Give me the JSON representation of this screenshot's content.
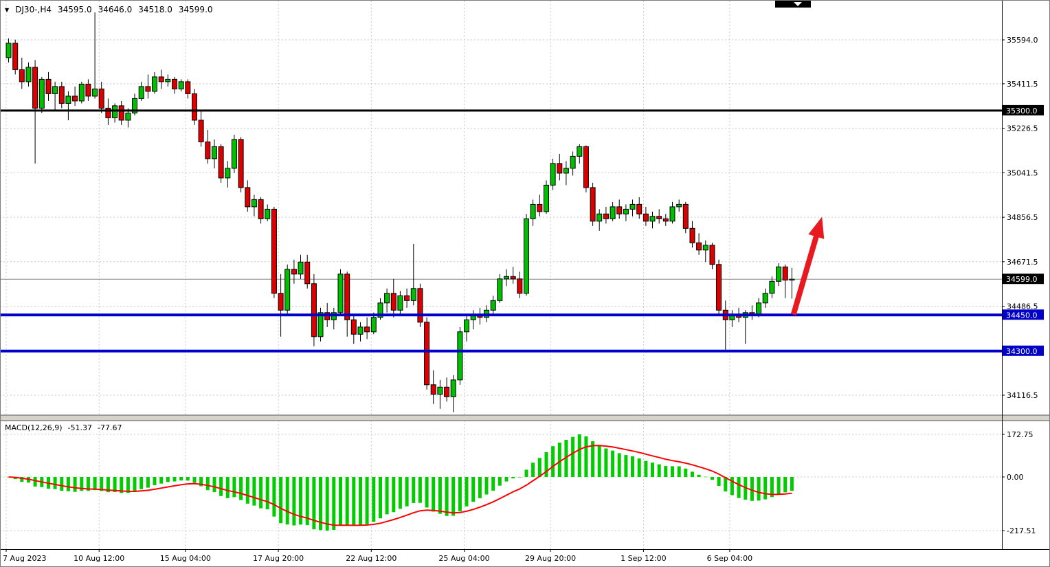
{
  "header": {
    "dropdown_icon": "▼",
    "symbol_period": "DJ30-,H4",
    "open": "34595.0",
    "high": "34646.0",
    "low": "34518.0",
    "close": "34599.0"
  },
  "macd_header": {
    "label": "MACD(12,26,9)",
    "macd_value": "-51.37",
    "signal_value": "-77.67"
  },
  "colors": {
    "bull": "#00BE00",
    "bear": "#DC0000",
    "candle_outline": "#000000",
    "histogram": "#00CC00",
    "signal_line": "#FF0000",
    "level_blue": "#0000C8",
    "level_black": "#000000",
    "current_price_line": "#808080",
    "arrow": "#E8191F",
    "badge_text": "#FFFFFF"
  },
  "chart_data": {
    "type": "candlestick",
    "symbol": "DJ30-",
    "timeframe": "H4",
    "indicator": "MACD(12,26,9)",
    "ylim": [
      34030,
      35760
    ],
    "price_axis": {
      "gridlines": [
        35594.0,
        35411.5,
        35226.5,
        35041.5,
        34856.5,
        34671.5,
        34486.5,
        34301.5,
        34116.5
      ],
      "tick_labels": [
        {
          "text": "35594.0",
          "price": 35594.0
        },
        {
          "text": "35411.5",
          "price": 35411.5
        },
        {
          "text": "35226.5",
          "price": 35226.5
        },
        {
          "text": "35041.5",
          "price": 35041.5
        },
        {
          "text": "34856.5",
          "price": 34856.5
        },
        {
          "text": "34671.5",
          "price": 34671.5
        },
        {
          "text": "34486.5",
          "price": 34486.5
        },
        {
          "text": "34116.5",
          "price": 34116.5
        }
      ],
      "badges": [
        {
          "text": "35300.0",
          "price": 35300.0,
          "bg": "#000000"
        },
        {
          "text": "34599.0",
          "price": 34599.0,
          "bg": "#000000"
        },
        {
          "text": "34450.0",
          "price": 34450.0,
          "bg": "#0000C8"
        },
        {
          "text": "34300.0",
          "price": 34300.0,
          "bg": "#0000C8"
        }
      ]
    },
    "h_lines": [
      {
        "price": 35300.0,
        "color": "#000000",
        "width": 3
      },
      {
        "price": 34450.0,
        "color": "#0000C8",
        "width": 4
      },
      {
        "price": 34300.0,
        "color": "#0000C8",
        "width": 4
      }
    ],
    "current_price_line": {
      "price": 34599.0
    },
    "time_axis": {
      "labels": [
        {
          "text": "7 Aug 2023",
          "bar": 0
        },
        {
          "text": "10 Aug 12:00",
          "bar": 14
        },
        {
          "text": "15 Aug 04:00",
          "bar": 27
        },
        {
          "text": "17 Aug 20:00",
          "bar": 41
        },
        {
          "text": "22 Aug 12:00",
          "bar": 55
        },
        {
          "text": "25 Aug 04:00",
          "bar": 69
        },
        {
          "text": "29 Aug 20:00",
          "bar": 82
        },
        {
          "text": "1 Sep 12:00",
          "bar": 96
        },
        {
          "text": "6 Sep 04:00",
          "bar": 109
        }
      ]
    },
    "candles": [
      [
        35520,
        35600,
        35500,
        35580
      ],
      [
        35580,
        35595,
        35450,
        35470
      ],
      [
        35470,
        35520,
        35390,
        35420
      ],
      [
        35420,
        35500,
        35400,
        35480
      ],
      [
        35480,
        35510,
        35080,
        35310
      ],
      [
        35310,
        35440,
        35290,
        35430
      ],
      [
        35430,
        35460,
        35340,
        35370
      ],
      [
        35370,
        35420,
        35300,
        35400
      ],
      [
        35400,
        35420,
        35310,
        35330
      ],
      [
        35330,
        35380,
        35260,
        35360
      ],
      [
        35360,
        35400,
        35320,
        35340
      ],
      [
        35340,
        35420,
        35330,
        35410
      ],
      [
        35410,
        35430,
        35340,
        35360
      ],
      [
        35360,
        35708,
        35350,
        35390
      ],
      [
        35390,
        35420,
        35290,
        35310
      ],
      [
        35310,
        35350,
        35240,
        35270
      ],
      [
        35270,
        35330,
        35250,
        35320
      ],
      [
        35320,
        35340,
        35240,
        35260
      ],
      [
        35260,
        35310,
        35230,
        35290
      ],
      [
        35290,
        35370,
        35280,
        35350
      ],
      [
        35350,
        35420,
        35340,
        35400
      ],
      [
        35400,
        35450,
        35350,
        35380
      ],
      [
        35380,
        35460,
        35370,
        35440
      ],
      [
        35440,
        35470,
        35390,
        35420
      ],
      [
        35420,
        35450,
        35400,
        35430
      ],
      [
        35430,
        35440,
        35370,
        35390
      ],
      [
        35390,
        35430,
        35380,
        35420
      ],
      [
        35420,
        35430,
        35350,
        35370
      ],
      [
        35370,
        35390,
        35240,
        35260
      ],
      [
        35260,
        35300,
        35150,
        35170
      ],
      [
        35170,
        35220,
        35080,
        35100
      ],
      [
        35100,
        35180,
        35060,
        35150
      ],
      [
        35150,
        35160,
        35000,
        35020
      ],
      [
        35020,
        35090,
        34980,
        35060
      ],
      [
        35060,
        35200,
        35040,
        35180
      ],
      [
        35180,
        35190,
        34960,
        34980
      ],
      [
        34980,
        35010,
        34880,
        34900
      ],
      [
        34900,
        34950,
        34860,
        34930
      ],
      [
        34930,
        34940,
        34830,
        34850
      ],
      [
        34850,
        34910,
        34840,
        34890
      ],
      [
        34890,
        34900,
        34520,
        34540
      ],
      [
        34540,
        34620,
        34360,
        34470
      ],
      [
        34470,
        34660,
        34450,
        34640
      ],
      [
        34640,
        34680,
        34580,
        34620
      ],
      [
        34620,
        34700,
        34600,
        34670
      ],
      [
        34670,
        34700,
        34560,
        34580
      ],
      [
        34580,
        34620,
        34320,
        34360
      ],
      [
        34360,
        34480,
        34340,
        34460
      ],
      [
        34460,
        34500,
        34400,
        34430
      ],
      [
        34430,
        34480,
        34390,
        34460
      ],
      [
        34460,
        34640,
        34450,
        34620
      ],
      [
        34620,
        34630,
        34360,
        34430
      ],
      [
        34430,
        34450,
        34330,
        34370
      ],
      [
        34370,
        34420,
        34340,
        34400
      ],
      [
        34400,
        34440,
        34350,
        34380
      ],
      [
        34380,
        34460,
        34370,
        34440
      ],
      [
        34440,
        34520,
        34430,
        34500
      ],
      [
        34500,
        34560,
        34460,
        34540
      ],
      [
        34540,
        34600,
        34440,
        34470
      ],
      [
        34470,
        34550,
        34450,
        34530
      ],
      [
        34530,
        34560,
        34480,
        34510
      ],
      [
        34510,
        34745,
        34490,
        34560
      ],
      [
        34560,
        34580,
        34400,
        34420
      ],
      [
        34420,
        34440,
        34140,
        34160
      ],
      [
        34160,
        34220,
        34080,
        34120
      ],
      [
        34120,
        34180,
        34060,
        34150
      ],
      [
        34150,
        34190,
        34090,
        34110
      ],
      [
        34110,
        34200,
        34045,
        34180
      ],
      [
        34180,
        34400,
        34160,
        34380
      ],
      [
        34380,
        34450,
        34340,
        34430
      ],
      [
        34430,
        34470,
        34390,
        34450
      ],
      [
        34450,
        34480,
        34410,
        34440
      ],
      [
        34440,
        34490,
        34420,
        34470
      ],
      [
        34470,
        34530,
        34450,
        34510
      ],
      [
        34510,
        34620,
        34500,
        34600
      ],
      [
        34600,
        34640,
        34570,
        34610
      ],
      [
        34610,
        34650,
        34580,
        34600
      ],
      [
        34600,
        34630,
        34520,
        34540
      ],
      [
        34540,
        34870,
        34530,
        34850
      ],
      [
        34850,
        34930,
        34820,
        34910
      ],
      [
        34910,
        34950,
        34860,
        34880
      ],
      [
        34880,
        35010,
        34870,
        34990
      ],
      [
        34990,
        35100,
        34970,
        35080
      ],
      [
        35080,
        35120,
        35010,
        35040
      ],
      [
        35040,
        35090,
        34990,
        35060
      ],
      [
        35060,
        35130,
        35030,
        35110
      ],
      [
        35110,
        35160,
        35080,
        35150
      ],
      [
        35150,
        35155,
        34960,
        34980
      ],
      [
        34980,
        35000,
        34820,
        34840
      ],
      [
        34840,
        34890,
        34800,
        34870
      ],
      [
        34870,
        34900,
        34830,
        34850
      ],
      [
        34850,
        34920,
        34840,
        34900
      ],
      [
        34900,
        34930,
        34850,
        34870
      ],
      [
        34870,
        34910,
        34840,
        34890
      ],
      [
        34890,
        34930,
        34860,
        34910
      ],
      [
        34910,
        34940,
        34850,
        34870
      ],
      [
        34870,
        34900,
        34820,
        34840
      ],
      [
        34840,
        34880,
        34810,
        34860
      ],
      [
        34860,
        34890,
        34830,
        34850
      ],
      [
        34850,
        34870,
        34820,
        34840
      ],
      [
        34840,
        34920,
        34830,
        34900
      ],
      [
        34900,
        34930,
        34880,
        34910
      ],
      [
        34910,
        34920,
        34790,
        34810
      ],
      [
        34810,
        34840,
        34730,
        34750
      ],
      [
        34750,
        34790,
        34700,
        34720
      ],
      [
        34720,
        34760,
        34670,
        34740
      ],
      [
        34740,
        34750,
        34640,
        34660
      ],
      [
        34660,
        34680,
        34450,
        34470
      ],
      [
        34470,
        34510,
        34300,
        34430
      ],
      [
        34430,
        34470,
        34400,
        34450
      ],
      [
        34450,
        34480,
        34420,
        34440
      ],
      [
        34440,
        34470,
        34330,
        34460
      ],
      [
        34460,
        34490,
        34430,
        34450
      ],
      [
        34450,
        34520,
        34440,
        34500
      ],
      [
        34500,
        34560,
        34480,
        34540
      ],
      [
        34540,
        34610,
        34520,
        34590
      ],
      [
        34590,
        34665,
        34570,
        34650
      ],
      [
        34650,
        34660,
        34520,
        34595
      ],
      [
        34595,
        34646,
        34518,
        34599
      ]
    ],
    "macd": {
      "params": "12,26,9",
      "axis_max": 172.75,
      "axis_min": -217.51,
      "axis_labels": [
        {
          "text": "172.75",
          "value": 172.75
        },
        {
          "text": "0.00",
          "value": 0
        },
        {
          "text": "-217.51",
          "value": -217.51
        }
      ],
      "current": {
        "macd": -51.37,
        "signal": -77.67
      }
    },
    "annotations": {
      "arrow": {
        "bar_from": 118.6,
        "price_from": 34452,
        "bar_to": 122.9,
        "price_to": 34858
      }
    }
  }
}
